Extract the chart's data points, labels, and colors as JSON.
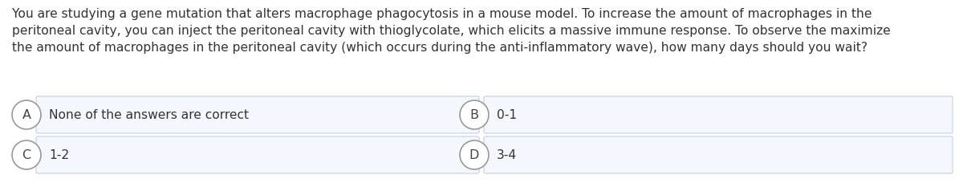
{
  "question": "You are studying a gene mutation that alters macrophage phagocytosis in a mouse model. To increase the amount of macrophages in the\nperitoneal cavity, you can inject the peritoneal cavity with thioglycolate, which elicits a massive immune response. To observe the maximize\nthe amount of macrophages in the peritoneal cavity (which occurs during the anti-inflammatory wave), how many days should you wait?",
  "answers": [
    {
      "label": "A",
      "text": "None of the answers are correct",
      "col": 0,
      "row": 0
    },
    {
      "label": "B",
      "text": "0-1",
      "col": 1,
      "row": 0
    },
    {
      "label": "C",
      "text": "1-2",
      "col": 0,
      "row": 1
    },
    {
      "label": "D",
      "text": "3-4",
      "col": 1,
      "row": 1
    }
  ],
  "bg_color": "#ffffff",
  "box_bg": "#f5f7ff",
  "box_border": "#c8d4e8",
  "circle_bg": "#ffffff",
  "circle_border": "#999999",
  "text_color": "#333333",
  "label_color": "#444444",
  "question_fontsize": 11.2,
  "answer_fontsize": 11.2,
  "label_fontsize": 11.5,
  "fig_width": 12.0,
  "fig_height": 2.38,
  "dpi": 100
}
